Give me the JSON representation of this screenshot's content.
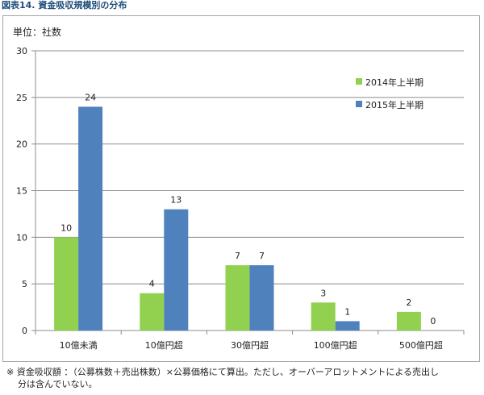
{
  "title": "図表14. 資金吸収規模別の分布",
  "footnote": {
    "line1": "※ 資金吸収額 ：（公募株数＋売出株数）×公募価格にて算出。ただし、オーバーアロットメントによる売出し",
    "line2": "分は含んでいない。"
  },
  "chart_data": {
    "type": "bar",
    "unit_label": "単位：社数",
    "categories": [
      "10億未満",
      "10億円超",
      "30億円超",
      "100億円超",
      "500億円超"
    ],
    "series": [
      {
        "name": "2014年上半期",
        "color": "#92d050",
        "values": [
          10,
          4,
          7,
          3,
          2
        ]
      },
      {
        "name": "2015年上半期",
        "color": "#4f81bd",
        "values": [
          24,
          13,
          7,
          1,
          0
        ]
      }
    ],
    "yticks": [
      0,
      5,
      10,
      15,
      20,
      25,
      30
    ],
    "ylim": [
      0,
      30
    ],
    "grid": true,
    "legend": "top-right"
  }
}
